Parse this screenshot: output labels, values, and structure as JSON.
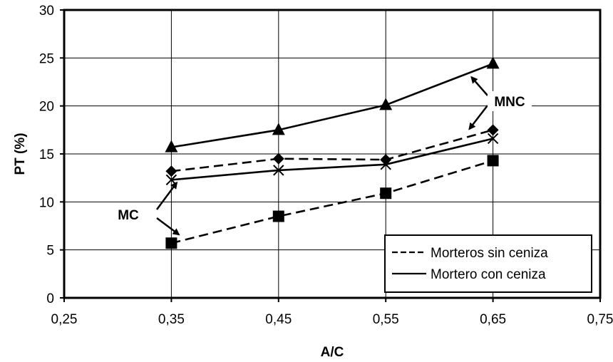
{
  "chart_data": {
    "type": "line",
    "xlabel": "A/C",
    "ylabel": "PT (%)",
    "xlim": [
      0.25,
      0.75
    ],
    "ylim": [
      0,
      30
    ],
    "x_ticks": [
      "0,25",
      "0,35",
      "0,45",
      "0,55",
      "0,65",
      "0,75"
    ],
    "y_ticks": [
      "0",
      "5",
      "10",
      "15",
      "20",
      "25",
      "30"
    ],
    "grid": true,
    "x": [
      0.35,
      0.45,
      0.55,
      0.65
    ],
    "series": [
      {
        "values": [
          15.7,
          17.5,
          20.1,
          24.4
        ],
        "marker": "triangle",
        "line": "solid"
      },
      {
        "values": [
          13.2,
          14.5,
          14.4,
          17.5
        ],
        "marker": "diamond",
        "line": "dashed"
      },
      {
        "values": [
          12.3,
          13.3,
          13.9,
          16.6
        ],
        "marker": "cross",
        "line": "solid"
      },
      {
        "values": [
          5.7,
          8.5,
          10.9,
          14.3
        ],
        "marker": "square",
        "line": "dashed"
      }
    ],
    "legend": {
      "placement": "bottom-right",
      "entries": [
        {
          "label": "Morteros sin ceniza",
          "line": "dashed"
        },
        {
          "label": "Mortero con ceniza",
          "line": "solid"
        }
      ]
    },
    "annotations": [
      {
        "text": "MNC",
        "arrows_to": [
          [
            0.63,
            23.0
          ],
          [
            0.628,
            17.6
          ]
        ]
      },
      {
        "text": "MC",
        "arrows_to": [
          [
            0.355,
            12.0
          ],
          [
            0.357,
            6.6
          ]
        ]
      }
    ]
  }
}
